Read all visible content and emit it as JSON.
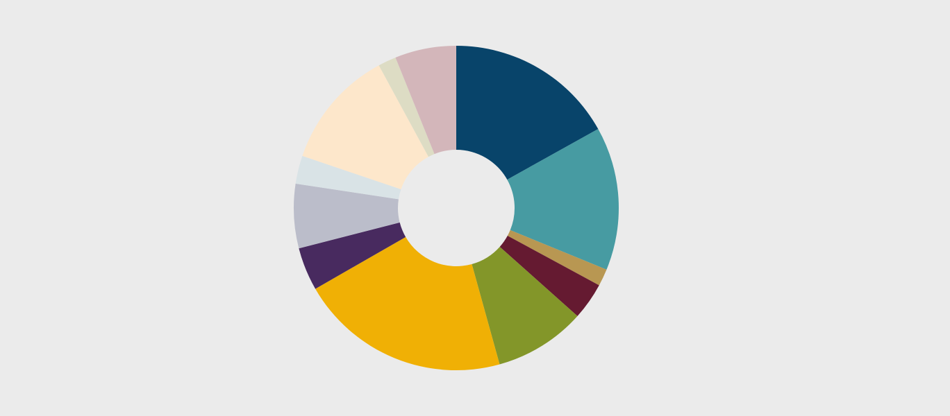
{
  "chart_data": {
    "type": "pie",
    "variant": "donut",
    "title": "",
    "legend": "none",
    "background_color": "#ebebeb",
    "slices": [
      {
        "value": 16.9,
        "color": "#08446a"
      },
      {
        "value": 14.3,
        "color": "#479ba2"
      },
      {
        "value": 1.7,
        "color": "#b89752"
      },
      {
        "value": 3.7,
        "color": "#651a31"
      },
      {
        "value": 9.1,
        "color": "#839629"
      },
      {
        "value": 21.0,
        "color": "#f0b005"
      },
      {
        "value": 4.3,
        "color": "#482a5f"
      },
      {
        "value": 6.4,
        "color": "#bbbdca"
      },
      {
        "value": 2.8,
        "color": "#d9e3e6"
      },
      {
        "value": 11.9,
        "color": "#fde7cb"
      },
      {
        "value": 1.8,
        "color": "#dddcc4"
      },
      {
        "value": 6.1,
        "color": "#d3b6ba"
      }
    ]
  }
}
